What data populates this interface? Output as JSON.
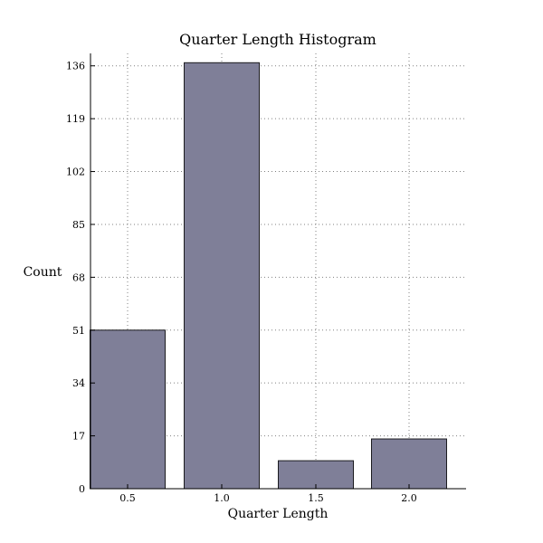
{
  "chart_data": {
    "type": "bar",
    "title": "Quarter Length Histogram",
    "xlabel": "Quarter Length",
    "ylabel": "Count",
    "categories": [
      "0.5",
      "1.0",
      "1.5",
      "2.0"
    ],
    "values": [
      51,
      137,
      9,
      16
    ],
    "yticks": [
      "0",
      "17",
      "34",
      "51",
      "68",
      "85",
      "102",
      "119",
      "136"
    ],
    "ylim": [
      0,
      140
    ],
    "grid": true,
    "bar_color": "#7f7f98",
    "edge_color": "#1b1b1f"
  }
}
